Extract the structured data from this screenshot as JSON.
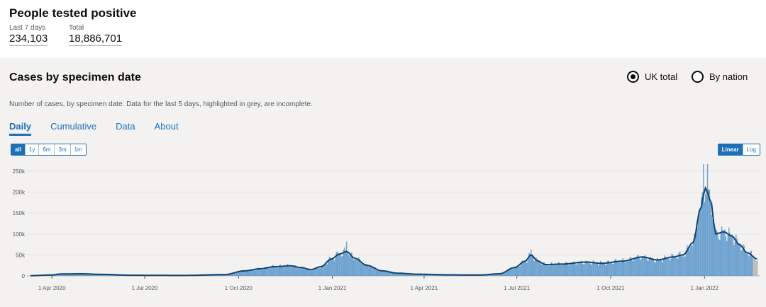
{
  "header": {
    "title": "People tested positive",
    "stats": [
      {
        "label": "Last 7 days",
        "value": "234,103"
      },
      {
        "label": "Total",
        "value": "18,886,701"
      }
    ]
  },
  "card": {
    "title": "Cases by specimen date",
    "nation_options": [
      {
        "label": "UK total",
        "selected": true
      },
      {
        "label": "By nation",
        "selected": false
      }
    ],
    "description": "Number of cases, by specimen date. Data for the last 5 days, highlighted in grey, are incomplete.",
    "tabs": [
      {
        "label": "Daily",
        "active": true
      },
      {
        "label": "Cumulative",
        "active": false
      },
      {
        "label": "Data",
        "active": false
      },
      {
        "label": "About",
        "active": false
      }
    ],
    "time_ranges": [
      {
        "label": "all",
        "active": true
      },
      {
        "label": "1y",
        "active": false
      },
      {
        "label": "6m",
        "active": false
      },
      {
        "label": "3m",
        "active": false
      },
      {
        "label": "1m",
        "active": false
      }
    ],
    "scales": [
      {
        "label": "Linear",
        "active": true
      },
      {
        "label": "Log",
        "active": false
      }
    ]
  },
  "colors": {
    "accent": "#1d70b8",
    "bar": "#5694ca",
    "line": "#12436d",
    "incomplete": "#b1b4b6"
  },
  "chart_data": {
    "type": "bar",
    "y_ticks": [
      "0",
      "50k",
      "100k",
      "150k",
      "200k",
      "250k"
    ],
    "y_tick_values": [
      0,
      50000,
      100000,
      150000,
      200000,
      250000
    ],
    "ylim": [
      0,
      260000
    ],
    "x_ticks": [
      {
        "label": "1 Apr 2020",
        "day": 21
      },
      {
        "label": "1 Jul 2020",
        "day": 112
      },
      {
        "label": "1 Oct 2020",
        "day": 204
      },
      {
        "label": "1 Jan 2021",
        "day": 296
      },
      {
        "label": "1 Apr 2021",
        "day": 386
      },
      {
        "label": "1 Jul 2021",
        "day": 477
      },
      {
        "label": "1 Oct 2021",
        "day": 569
      },
      {
        "label": "1 Jan 2022",
        "day": 661
      }
    ],
    "x_start": "2020-03-11",
    "x_days_total": 713,
    "rolling_average_keypoints": [
      [
        0,
        500
      ],
      [
        20,
        2000
      ],
      [
        30,
        4500
      ],
      [
        50,
        5000
      ],
      [
        70,
        3500
      ],
      [
        100,
        1500
      ],
      [
        150,
        1000
      ],
      [
        190,
        3000
      ],
      [
        210,
        12000
      ],
      [
        225,
        17000
      ],
      [
        240,
        22000
      ],
      [
        255,
        24000
      ],
      [
        265,
        20000
      ],
      [
        275,
        15000
      ],
      [
        285,
        22000
      ],
      [
        295,
        40000
      ],
      [
        303,
        52000
      ],
      [
        310,
        58000
      ],
      [
        318,
        42000
      ],
      [
        330,
        25000
      ],
      [
        345,
        12000
      ],
      [
        360,
        6500
      ],
      [
        380,
        4000
      ],
      [
        410,
        2500
      ],
      [
        440,
        2000
      ],
      [
        460,
        5000
      ],
      [
        475,
        20000
      ],
      [
        485,
        35000
      ],
      [
        491,
        50000
      ],
      [
        497,
        36000
      ],
      [
        505,
        27000
      ],
      [
        520,
        28000
      ],
      [
        545,
        33000
      ],
      [
        560,
        30000
      ],
      [
        580,
        35000
      ],
      [
        600,
        45000
      ],
      [
        615,
        38000
      ],
      [
        630,
        45000
      ],
      [
        640,
        50000
      ],
      [
        650,
        80000
      ],
      [
        657,
        160000
      ],
      [
        662,
        210000
      ],
      [
        667,
        180000
      ],
      [
        672,
        100000
      ],
      [
        680,
        105000
      ],
      [
        688,
        95000
      ],
      [
        695,
        75000
      ],
      [
        703,
        55000
      ],
      [
        713,
        40000
      ]
    ],
    "daily_peaks": [
      {
        "day": 310,
        "value": 82000
      },
      {
        "day": 491,
        "value": 63000
      },
      {
        "day": 660,
        "value": 272000
      },
      {
        "day": 664,
        "value": 272000
      }
    ]
  }
}
